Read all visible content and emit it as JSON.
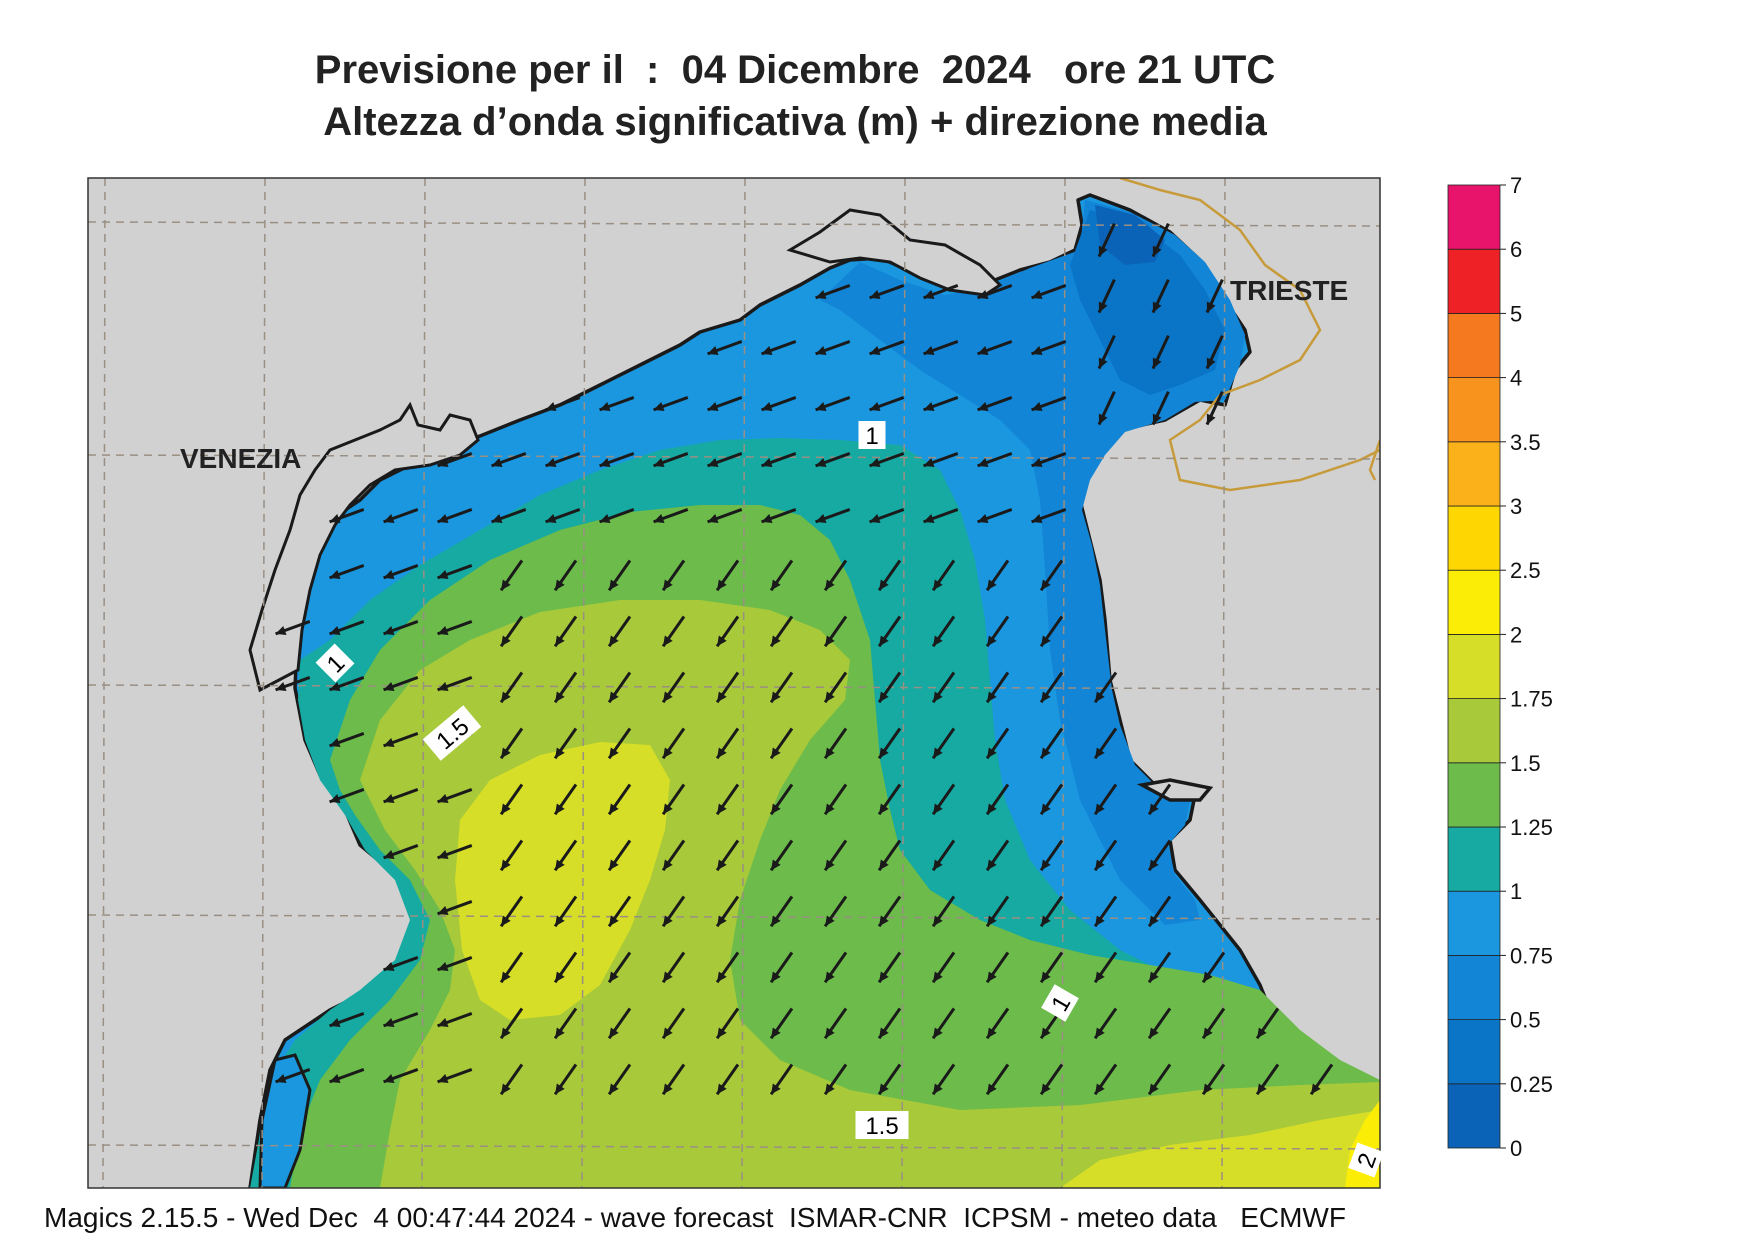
{
  "title_line1": "Previsione per il  :  04 Dicembre  2024   ore 21 UTC",
  "title_line2": "Altezza d’onda significativa (m) + direzione media",
  "footer": "Magics 2.15.5 - Wed Dec  4 00:47:44 2024 - wave forecast  ISMAR-CNR  ICPSM - meteo data   ECMWF",
  "cities": {
    "venezia": "VENEZIA",
    "trieste": "TRIESTE"
  },
  "contour_labels": [
    "1",
    "1",
    "1.5",
    "1",
    "1.5",
    "2"
  ],
  "colorbar": {
    "ticks": [
      "0",
      "0.25",
      "0.5",
      "0.75",
      "1",
      "1.25",
      "1.5",
      "1.75",
      "2",
      "2.5",
      "3",
      "3.5",
      "4",
      "5",
      "6",
      "7"
    ],
    "colors": [
      "#0b63b8",
      "#0a75c6",
      "#1385d6",
      "#1b97e0",
      "#16aaa2",
      "#6cbb4b",
      "#a7c93a",
      "#d6de27",
      "#fbed05",
      "#fed602",
      "#fbb21a",
      "#f8931e",
      "#f4791f",
      "#ee2226",
      "#e8136b"
    ]
  },
  "land_color": "#d1d1d1",
  "arrow_color": "#1a1a1a"
}
